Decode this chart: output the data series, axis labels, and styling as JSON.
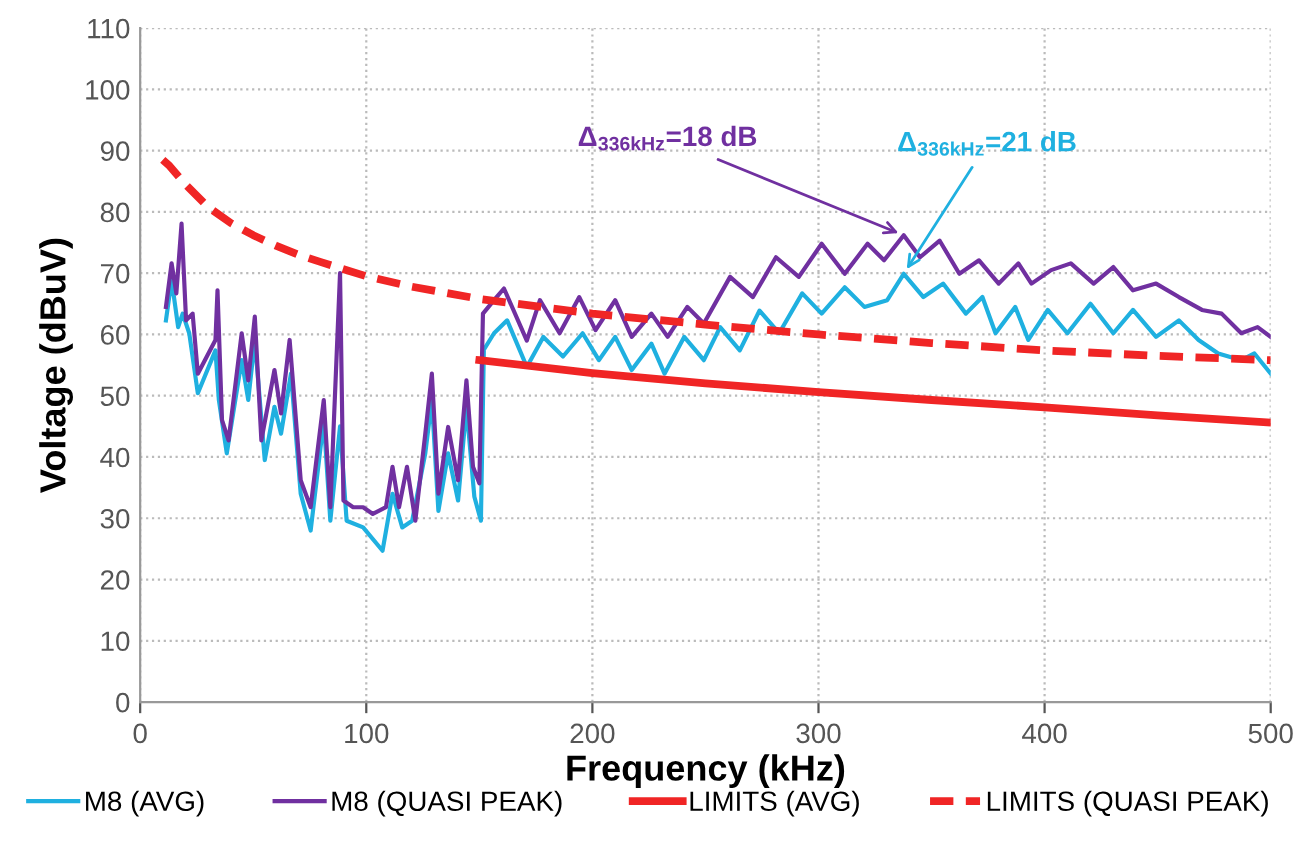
{
  "chart_data": {
    "type": "line",
    "xlabel": "Frequency (kHz)",
    "ylabel": "Voltage (dBuV)",
    "xlim": [
      0,
      500
    ],
    "xticks": [
      0,
      100,
      200,
      300,
      400,
      500
    ],
    "ylim": [
      0,
      110
    ],
    "yticks": [
      0,
      10,
      20,
      30,
      40,
      50,
      60,
      70,
      80,
      90,
      100,
      110
    ],
    "grid": true,
    "legend": "bottom",
    "marker": "none",
    "series": [
      {
        "name": "M8 (AVG)",
        "color": "#1fb0e0",
        "line_style": "solid",
        "x": [
          11.4,
          13.9,
          16.8,
          18.8,
          21.7,
          25.5,
          33.3,
          34.8,
          38.3,
          44.9,
          47.8,
          50.7,
          55.1,
          59.4,
          62.3,
          66.7,
          71,
          75.4,
          81.2,
          84.1,
          88.4,
          91.3,
          98.6,
          107.2,
          111.6,
          115.9,
          120.3,
          126.1,
          129,
          131.9,
          136.2,
          140.6,
          144.3,
          147.8,
          150.7,
          152,
          156.5,
          162.3,
          171,
          178.3,
          187,
          195.7,
          202.9,
          210.1,
          217.4,
          226.1,
          231.9,
          240.6,
          249.3,
          256.5,
          265.2,
          273.9,
          282.6,
          292.8,
          301.4,
          311.6,
          320.3,
          330.4,
          337.7,
          346.4,
          355.1,
          365.2,
          372.5,
          378.3,
          387,
          392.8,
          401.4,
          410.1,
          420.3,
          430.4,
          439.1,
          449.3,
          459.4,
          468.1,
          476.8,
          487,
          492.8,
          500
        ],
        "values": [
          62.3,
          68.9,
          61.2,
          63.4,
          60.2,
          50.4,
          57.4,
          49.3,
          40.6,
          55.8,
          49.3,
          59.1,
          39.5,
          48.2,
          43.8,
          53.6,
          34,
          28,
          46,
          29.6,
          45,
          29.6,
          28.5,
          24.7,
          34,
          28.5,
          29.6,
          40.6,
          49.3,
          31.2,
          40.6,
          32.9,
          48.2,
          33.5,
          29.6,
          57.5,
          60.2,
          62.3,
          54.7,
          59.6,
          56.4,
          60.2,
          55.8,
          59.6,
          54.2,
          58.5,
          53.6,
          59.6,
          55.8,
          61.2,
          57.4,
          63.9,
          60.2,
          66.7,
          63.4,
          67.7,
          64.5,
          65.6,
          69.9,
          66.1,
          68.3,
          63.4,
          66.1,
          60.2,
          64.5,
          59.1,
          64,
          60.2,
          65,
          60.2,
          64,
          59.6,
          62.3,
          59.1,
          56.9,
          55.8,
          56.9,
          53.6
        ]
      },
      {
        "name": "M8 (QUASI PEAK)",
        "color": "#7030a0",
        "line_style": "solid",
        "x": [
          11.4,
          13.9,
          16,
          18.3,
          20.3,
          23.2,
          25.5,
          33.3,
          34.2,
          36.2,
          39.1,
          44.9,
          47.8,
          50.7,
          53.6,
          59.4,
          62.3,
          66.1,
          71,
          75.4,
          81.2,
          84.1,
          88.4,
          89.9,
          94.2,
          98.6,
          102.9,
          108.7,
          111.6,
          114.5,
          118,
          121.7,
          126.1,
          129,
          131.9,
          136.2,
          140.6,
          144.3,
          147.2,
          150,
          151.6,
          156.5,
          160.9,
          171,
          176.8,
          185.5,
          194.2,
          201.4,
          210.1,
          217.4,
          226.1,
          233.3,
          242,
          249.3,
          260.9,
          271,
          281.2,
          291.3,
          301.4,
          311.6,
          321.7,
          329,
          337.7,
          344.9,
          353.6,
          362.3,
          371,
          379.7,
          388.4,
          394.2,
          402.9,
          411.6,
          421.7,
          430.4,
          439.1,
          449.3,
          459.4,
          469.6,
          478.3,
          487,
          494.2,
          500
        ],
        "values": [
          64.5,
          71.6,
          66.7,
          78.1,
          62.3,
          63.4,
          53.6,
          59.1,
          67.2,
          46,
          42.7,
          60.2,
          52.5,
          62.9,
          42.7,
          54.2,
          47.1,
          59.1,
          36.2,
          31.8,
          49.3,
          31.8,
          70,
          32.9,
          31.8,
          31.8,
          30.7,
          31.8,
          38.4,
          31.8,
          38.4,
          29.6,
          43.8,
          53.6,
          34,
          44.9,
          36.2,
          52.5,
          38.4,
          35.7,
          63.4,
          65.6,
          67.5,
          59,
          65.6,
          60.2,
          66.1,
          60.7,
          65.6,
          59.6,
          63.4,
          59.6,
          64.5,
          61.8,
          69.4,
          66.1,
          72.6,
          69.4,
          74.8,
          69.9,
          74.8,
          72.1,
          76.2,
          72.6,
          75.3,
          69.9,
          72.1,
          68.3,
          71.6,
          68.3,
          70.5,
          71.6,
          68.3,
          71,
          67.2,
          68.3,
          66.1,
          64,
          63.4,
          60.2,
          61.2,
          59.6
        ]
      },
      {
        "name": "LIMITS (AVG)",
        "color": "#f02525",
        "line_style": "solid",
        "x": [
          150,
          200,
          250,
          300,
          350,
          400,
          450,
          500
        ],
        "values": [
          55.8,
          53.7,
          52,
          50.6,
          49.3,
          48.1,
          46.8,
          45.6
        ]
      },
      {
        "name": "LIMITS (QUASI PEAK)",
        "color": "#f02525",
        "line_style": "dashed",
        "x": [
          10,
          13,
          20,
          30,
          40,
          50,
          60,
          70,
          80,
          100,
          120,
          150,
          200,
          250,
          300,
          350,
          400,
          450,
          500
        ],
        "values": [
          88.5,
          87.5,
          84.5,
          80.8,
          78.2,
          76.2,
          74.5,
          73,
          71.8,
          69.5,
          67.8,
          65.8,
          63.4,
          61.6,
          60,
          58.6,
          57.4,
          56.5,
          55.8
        ]
      }
    ],
    "annotations": [
      {
        "text": "Δ$_{336kHz}$=18 dB",
        "x": 337.7,
        "y": 76.2
      },
      {
        "text": "Δ$_{336kHz}$=21 dB",
        "x": 337.7,
        "y": 69.9
      }
    ]
  }
}
